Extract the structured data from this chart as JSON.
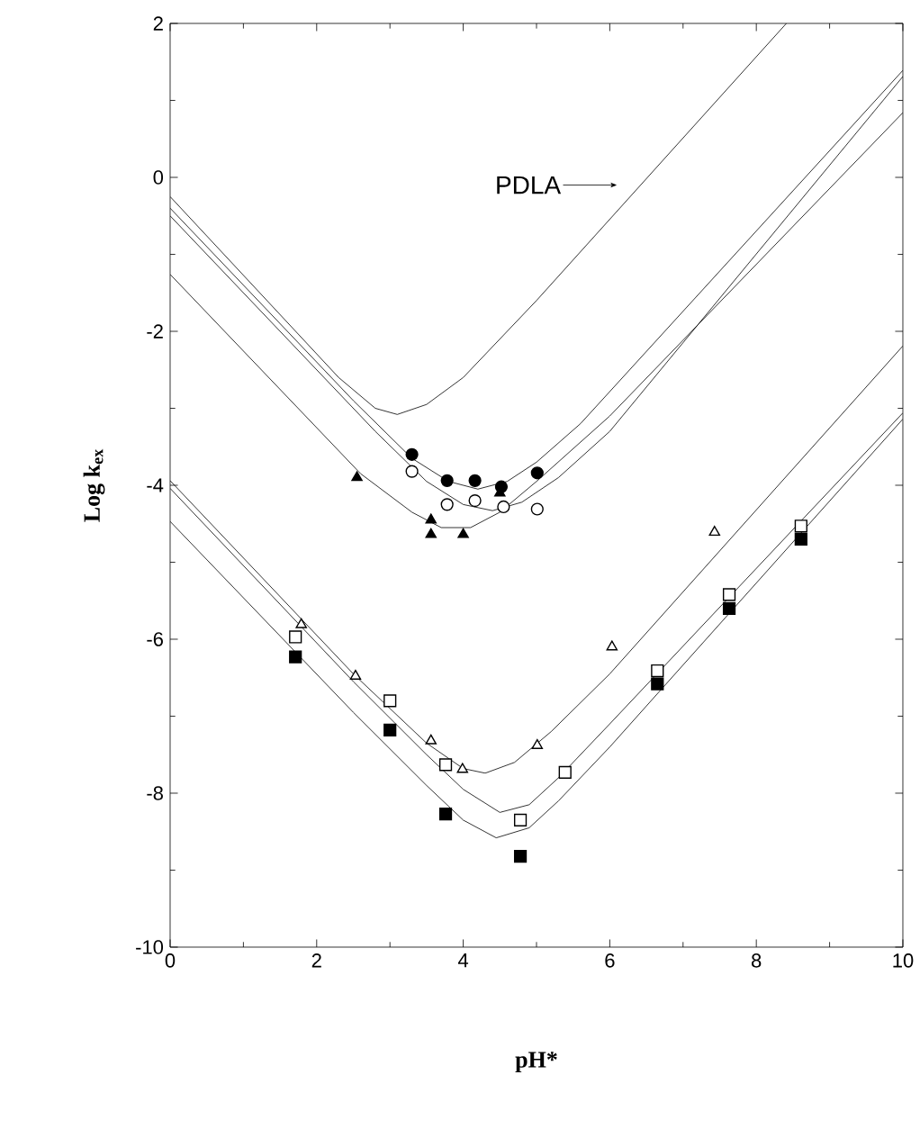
{
  "chart_data": {
    "type": "scatter",
    "xlabel": "pH*",
    "ylabel": "Log k$_{ex}$",
    "xlim": [
      0,
      10
    ],
    "ylim": [
      -10,
      2
    ],
    "xticks": [
      0,
      2,
      4,
      6,
      8,
      10
    ],
    "yticks": [
      -10,
      -8,
      -6,
      -4,
      -2,
      0,
      2
    ],
    "annotations": [
      {
        "text": "PDLA",
        "x": 6.1,
        "y": -0.1
      }
    ],
    "series": [
      {
        "type": "line",
        "color": "#000000",
        "line_style": "solid",
        "x": [
          0,
          2.3,
          2.8,
          3.1,
          3.5,
          4.0,
          5.0,
          8.41
        ],
        "values": [
          -0.25,
          -2.6,
          -3.0,
          -3.08,
          -2.95,
          -2.6,
          -1.6,
          2.0
        ]
      },
      {
        "type": "line",
        "color": "#000000",
        "line_style": "solid",
        "x": [
          0,
          2.5,
          3.3,
          3.8,
          4.2,
          4.6,
          5.0,
          5.6,
          10
        ],
        "values": [
          -0.4,
          -2.9,
          -3.65,
          -3.95,
          -4.05,
          -3.95,
          -3.7,
          -3.2,
          1.39
        ]
      },
      {
        "type": "line",
        "color": "#000000",
        "line_style": "solid",
        "x": [
          0,
          2.8,
          3.5,
          4.0,
          4.4,
          4.8,
          5.3,
          6.0,
          10
        ],
        "values": [
          -0.5,
          -3.3,
          -3.95,
          -4.25,
          -4.33,
          -4.22,
          -3.9,
          -3.3,
          1.31
        ]
      },
      {
        "type": "line",
        "color": "#000000",
        "line_style": "solid",
        "x": [
          0,
          2.6,
          3.3,
          3.7,
          4.1,
          4.5,
          5.0,
          6.0,
          10
        ],
        "values": [
          -1.26,
          -3.85,
          -4.35,
          -4.55,
          -4.55,
          -4.35,
          -3.95,
          -3.1,
          0.84
        ]
      },
      {
        "type": "line",
        "color": "#000000",
        "line_style": "solid",
        "x": [
          0,
          2.5,
          3.5,
          4.0,
          4.3,
          4.7,
          5.2,
          6.0,
          10
        ],
        "values": [
          -3.94,
          -6.45,
          -7.35,
          -7.68,
          -7.74,
          -7.6,
          -7.2,
          -6.45,
          -2.19
        ]
      },
      {
        "type": "line",
        "color": "#000000",
        "line_style": "solid",
        "x": [
          0,
          2.5,
          3.5,
          4.0,
          4.5,
          4.9,
          5.3,
          6.0,
          10
        ],
        "values": [
          -4.04,
          -6.55,
          -7.5,
          -7.95,
          -8.25,
          -8.15,
          -7.8,
          -7.1,
          -3.06
        ]
      },
      {
        "type": "line",
        "color": "#000000",
        "line_style": "solid",
        "x": [
          0,
          2.5,
          3.5,
          4.0,
          4.45,
          4.9,
          5.3,
          6.0,
          10
        ],
        "values": [
          -4.47,
          -6.95,
          -7.9,
          -8.35,
          -8.58,
          -8.45,
          -8.1,
          -7.4,
          -3.14
        ]
      },
      {
        "color": "#000000",
        "marker": "circle",
        "x": [
          3.3,
          3.78,
          4.16,
          4.52,
          5.01
        ],
        "values": [
          -3.6,
          -3.94,
          -3.94,
          -4.02,
          -3.84
        ]
      },
      {
        "color": "#ffffff",
        "marker": "circle",
        "x": [
          3.3,
          3.78,
          4.16,
          4.55,
          5.01
        ],
        "values": [
          -3.82,
          -4.25,
          -4.2,
          -4.28,
          -4.31
        ]
      },
      {
        "color": "#000000",
        "marker": "triangle",
        "x": [
          2.55,
          3.56,
          3.56,
          4.0,
          4.5
        ],
        "values": [
          -3.9,
          -4.45,
          -4.64,
          -4.64,
          -4.1
        ]
      },
      {
        "color": "#ffffff",
        "marker": "triangle",
        "x": [
          1.79,
          2.53,
          3.56,
          3.99,
          5.01,
          6.03,
          7.43
        ],
        "values": [
          -5.81,
          -6.48,
          -7.32,
          -7.69,
          -7.38,
          -6.1,
          -4.61
        ]
      },
      {
        "color": "#ffffff",
        "marker": "square",
        "x": [
          1.71,
          3.0,
          3.76,
          4.78,
          5.39,
          6.65,
          7.63,
          8.61
        ],
        "values": [
          -5.97,
          -6.8,
          -7.63,
          -8.35,
          -7.73,
          -6.41,
          -5.42,
          -4.53
        ]
      },
      {
        "color": "#000000",
        "marker": "square",
        "x": [
          1.71,
          3.0,
          3.76,
          4.78,
          6.65,
          7.63,
          8.61
        ],
        "values": [
          -6.23,
          -7.18,
          -8.27,
          -8.82,
          -6.58,
          -5.6,
          -4.7
        ]
      }
    ]
  }
}
